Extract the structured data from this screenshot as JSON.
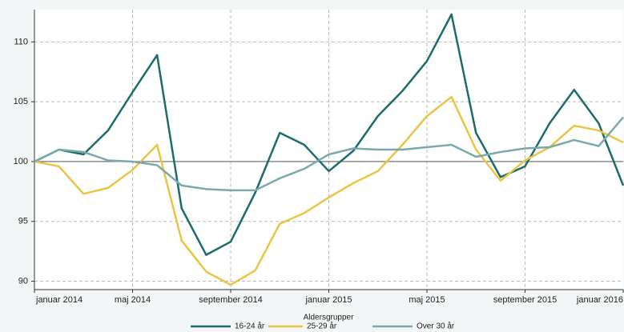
{
  "chart_data": {
    "type": "line",
    "categories": [
      "januar 2014",
      null,
      null,
      null,
      "maj 2014",
      null,
      null,
      null,
      "september 2014",
      null,
      null,
      null,
      "januar 2015",
      null,
      null,
      null,
      "maj 2015",
      null,
      null,
      null,
      "september 2015",
      null,
      null,
      null,
      "januar 2016"
    ],
    "series": [
      {
        "name": "16-24 år",
        "color": "#1d6b6b",
        "values": [
          100,
          101,
          100.6,
          102.6,
          105.8,
          108.9,
          96.1,
          92.2,
          93.3,
          97.4,
          102.4,
          101.4,
          99.2,
          100.9,
          103.8,
          105.9,
          108.4,
          112.3,
          102.4,
          98.7,
          99.6,
          103.2,
          106,
          103.2,
          98
        ]
      },
      {
        "name": "25-29 år",
        "color": "#e9c545",
        "values": [
          100,
          99.6,
          97.3,
          97.8,
          99.3,
          101.4,
          93.4,
          90.8,
          89.7,
          90.9,
          94.8,
          95.7,
          97,
          98.2,
          99.2,
          101.4,
          103.8,
          105.4,
          101,
          98.4,
          100.1,
          101.2,
          103,
          102.6,
          101.6
        ]
      },
      {
        "name": "Over 30 år",
        "color": "#7aa9a9",
        "values": [
          100,
          101,
          100.8,
          100.1,
          100,
          99.7,
          98,
          97.7,
          97.6,
          97.6,
          98.6,
          99.4,
          100.6,
          101.1,
          101,
          101,
          101.2,
          101.4,
          100.4,
          100.8,
          101.1,
          101.2,
          101.8,
          101.3,
          103.7
        ]
      }
    ],
    "ylim": [
      89.3,
      112.7
    ],
    "yticks": [
      90,
      95,
      100,
      105,
      110
    ],
    "reference_line": 100,
    "grid": true,
    "legend_title": "Aldersgrupper",
    "legend": "bottom"
  }
}
